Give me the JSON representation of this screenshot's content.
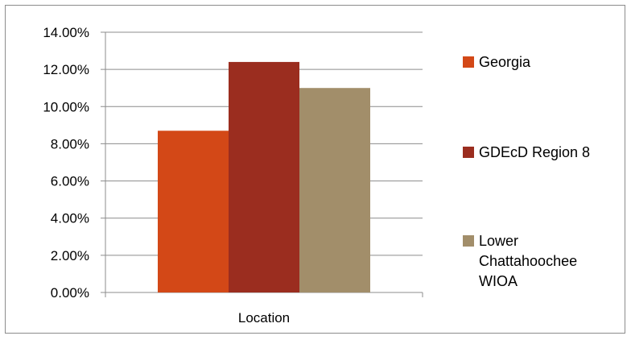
{
  "chart_data": {
    "type": "bar",
    "categories": [
      "Location"
    ],
    "series": [
      {
        "name": "Georgia",
        "values": [
          0.087
        ],
        "color": "#D34817"
      },
      {
        "name": "GDEcD Region 8",
        "values": [
          0.124
        ],
        "color": "#9B2D1F"
      },
      {
        "name": "Lower Chattahoochee WIOA",
        "values": [
          0.11
        ],
        "color": "#A28E6A"
      }
    ],
    "title": "",
    "xlabel": "",
    "ylabel": "",
    "ylim": [
      0,
      0.14
    ],
    "yticks": [
      0,
      0.02,
      0.04,
      0.06,
      0.08,
      0.1,
      0.12,
      0.14
    ],
    "ytick_labels": [
      "0.00%",
      "2.00%",
      "4.00%",
      "6.00%",
      "8.00%",
      "10.00%",
      "12.00%",
      "14.00%"
    ],
    "grid": true,
    "legend_position": "right"
  }
}
